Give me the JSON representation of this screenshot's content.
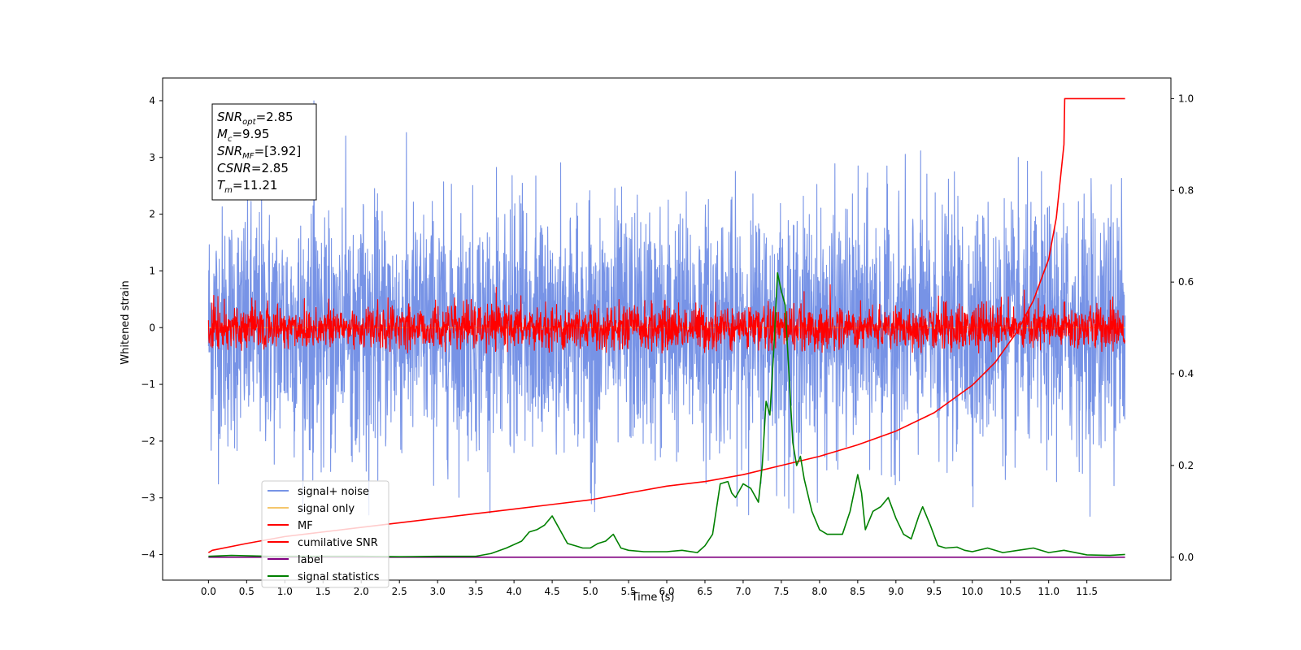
{
  "chart_data": {
    "type": "line",
    "title": "",
    "xlabel": "Time (s)",
    "ylabel": "Whitened strain",
    "ylabel_right": "",
    "xlim": [
      -0.6,
      12.6
    ],
    "ylim": [
      -4.45,
      4.4
    ],
    "ylim_right": [
      -0.05,
      1.045
    ],
    "xticks": [
      "0.0",
      "0.5",
      "1.0",
      "1.5",
      "2.0",
      "2.5",
      "3.0",
      "3.5",
      "4.0",
      "4.5",
      "5.0",
      "5.5",
      "6.0",
      "6.5",
      "7.0",
      "7.5",
      "8.0",
      "8.5",
      "9.0",
      "9.5",
      "10.0",
      "10.5",
      "11.0",
      "11.5"
    ],
    "yticks_left": [
      "4",
      "3",
      "2",
      "1",
      "0",
      "−1",
      "−2",
      "−3",
      "−4"
    ],
    "yticks_right": [
      "1.0",
      "0.8",
      "0.6",
      "0.4",
      "0.2",
      "0.0"
    ],
    "grid": false,
    "legend_position": "lower-left",
    "annotation": [
      {
        "main": "SNR",
        "sub": "opt",
        "value": "=2.85"
      },
      {
        "main": "M",
        "sub": "c",
        "value": "=9.95"
      },
      {
        "main": "SNR",
        "sub": "MF",
        "value": "=[3.92]"
      },
      {
        "main": "CSNR",
        "sub": "",
        "value": "=2.85"
      },
      {
        "main": "T",
        "sub": "m",
        "value": "=11.21"
      }
    ],
    "series": [
      {
        "name": "signal+ noise",
        "color": "#7793e6",
        "axis": "left",
        "kind": "noise",
        "x_range": [
          0.0,
          12.0
        ],
        "amplitude_range": [
          -3.35,
          4.0
        ]
      },
      {
        "name": "signal only",
        "color": "#f5c66c",
        "axis": "left",
        "kind": "flat",
        "x_range": [
          0.0,
          12.0
        ],
        "value": 0.0
      },
      {
        "name": "MF",
        "color": "#ff0000",
        "axis": "left",
        "kind": "noise",
        "x_range": [
          0.0,
          12.0
        ],
        "amplitude_range": [
          -0.45,
          1.0
        ]
      },
      {
        "name": "cumilative SNR",
        "color": "#ff0000",
        "axis": "right",
        "x": [
          0.0,
          0.05,
          0.5,
          1.0,
          1.5,
          2.0,
          2.5,
          3.0,
          3.5,
          4.0,
          4.5,
          5.0,
          5.5,
          6.0,
          6.5,
          7.0,
          7.5,
          8.0,
          8.5,
          9.0,
          9.5,
          10.0,
          10.3,
          10.6,
          10.8,
          11.0,
          11.1,
          11.2,
          11.21,
          12.0
        ],
        "y": [
          0.01,
          0.015,
          0.03,
          0.045,
          0.055,
          0.065,
          0.075,
          0.085,
          0.095,
          0.105,
          0.115,
          0.125,
          0.14,
          0.155,
          0.165,
          0.18,
          0.2,
          0.22,
          0.245,
          0.275,
          0.315,
          0.375,
          0.425,
          0.495,
          0.56,
          0.65,
          0.74,
          0.9,
          1.0,
          1.0
        ]
      },
      {
        "name": "label",
        "color": "#800080",
        "axis": "right",
        "x": [
          0.0,
          12.0
        ],
        "y": [
          0.0,
          0.0
        ]
      },
      {
        "name": "signal statistics",
        "color": "#008000",
        "axis": "right",
        "x": [
          0.0,
          0.3,
          0.8,
          1.5,
          2.0,
          2.5,
          3.0,
          3.5,
          3.7,
          3.9,
          4.1,
          4.2,
          4.3,
          4.4,
          4.5,
          4.55,
          4.6,
          4.7,
          4.8,
          4.9,
          5.0,
          5.1,
          5.2,
          5.3,
          5.35,
          5.4,
          5.5,
          5.7,
          6.0,
          6.2,
          6.4,
          6.5,
          6.6,
          6.7,
          6.8,
          6.85,
          6.9,
          7.0,
          7.1,
          7.2,
          7.25,
          7.3,
          7.35,
          7.4,
          7.45,
          7.5,
          7.55,
          7.6,
          7.65,
          7.7,
          7.75,
          7.8,
          7.9,
          8.0,
          8.1,
          8.3,
          8.4,
          8.5,
          8.55,
          8.6,
          8.7,
          8.8,
          8.9,
          9.0,
          9.1,
          9.2,
          9.3,
          9.35,
          9.45,
          9.55,
          9.65,
          9.8,
          9.9,
          10.0,
          10.2,
          10.4,
          10.6,
          10.8,
          11.0,
          11.2,
          11.5,
          11.8,
          12.0
        ],
        "y": [
          0.002,
          0.004,
          0.002,
          0.002,
          0.002,
          0.001,
          0.002,
          0.002,
          0.008,
          0.02,
          0.035,
          0.055,
          0.06,
          0.07,
          0.09,
          0.075,
          0.06,
          0.03,
          0.025,
          0.02,
          0.02,
          0.03,
          0.035,
          0.05,
          0.035,
          0.02,
          0.015,
          0.012,
          0.012,
          0.015,
          0.01,
          0.025,
          0.05,
          0.16,
          0.165,
          0.14,
          0.13,
          0.16,
          0.15,
          0.12,
          0.2,
          0.34,
          0.31,
          0.45,
          0.62,
          0.58,
          0.55,
          0.4,
          0.25,
          0.2,
          0.22,
          0.17,
          0.1,
          0.06,
          0.05,
          0.05,
          0.1,
          0.18,
          0.14,
          0.06,
          0.1,
          0.11,
          0.13,
          0.085,
          0.05,
          0.04,
          0.09,
          0.11,
          0.07,
          0.025,
          0.02,
          0.022,
          0.015,
          0.012,
          0.02,
          0.01,
          0.015,
          0.02,
          0.01,
          0.015,
          0.005,
          0.004,
          0.006
        ]
      }
    ]
  }
}
